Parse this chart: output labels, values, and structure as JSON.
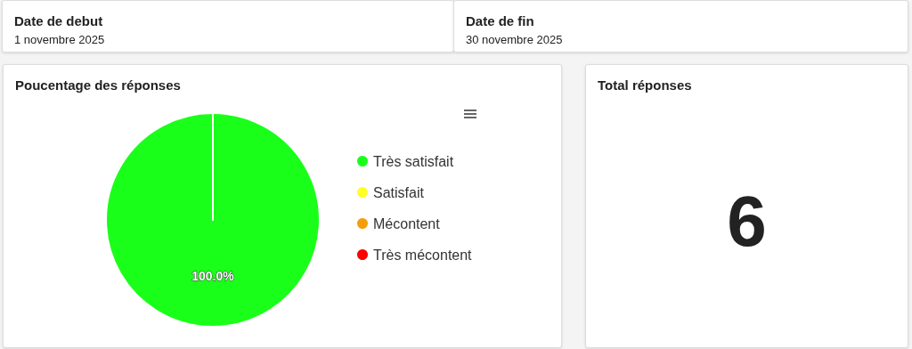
{
  "chart_data": [
    {
      "type": "other",
      "title": "Date de debut",
      "annotations": [
        "1 novembre 2025"
      ]
    },
    {
      "type": "other",
      "title": "Date de fin",
      "annotations": [
        "30 novembre 2025"
      ]
    },
    {
      "type": "pie",
      "title": "Poucentage des réponses",
      "categories": [
        "Très satisfait",
        "Satisfait",
        "Mécontent",
        "Très mécontent"
      ],
      "values": [
        100,
        0,
        0,
        0
      ],
      "colors": [
        "#1aff1a",
        "#ffff29",
        "#f59e0b",
        "#ff0000"
      ],
      "value_labels": [
        "100.0%",
        null,
        null,
        null
      ],
      "legend": "right"
    },
    {
      "type": "other",
      "title": "Total réponses",
      "annotations": [
        "6"
      ]
    }
  ]
}
